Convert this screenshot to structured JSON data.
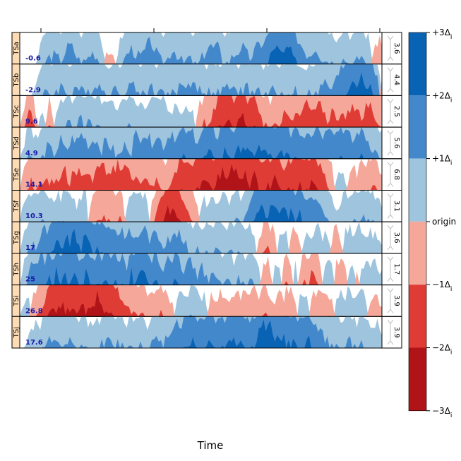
{
  "chart_data": {
    "type": "horizonplot",
    "title": "",
    "xlabel": "Time",
    "ylabel": "",
    "x_ticks": 4,
    "n_points": 160,
    "panels": [
      {
        "name": "TSa",
        "origin": "-0.6",
        "scale": "3.6"
      },
      {
        "name": "TSb",
        "origin": "-2.9",
        "scale": "4.4"
      },
      {
        "name": "TSc",
        "origin": "9.6",
        "scale": "2.5"
      },
      {
        "name": "TSd",
        "origin": "4.9",
        "scale": "5.6"
      },
      {
        "name": "TSe",
        "origin": "14.1",
        "scale": "6.8"
      },
      {
        "name": "TSf",
        "origin": "10.3",
        "scale": "3.1"
      },
      {
        "name": "TSg",
        "origin": "17",
        "scale": "3.6"
      },
      {
        "name": "TSh",
        "origin": "25",
        "scale": "1.7"
      },
      {
        "name": "TSi",
        "origin": "26.8",
        "scale": "3.9"
      },
      {
        "name": "TSj",
        "origin": "17.6",
        "scale": "3.9"
      }
    ],
    "level_profiles": [
      [
        0,
        0,
        0,
        0,
        0,
        0.5,
        1,
        1.2,
        1.3,
        1.2,
        1.1,
        1.4,
        1.6,
        1.5,
        1.2,
        1.0,
        1.1,
        1.3,
        1.4,
        1.2,
        0.8,
        -0.3,
        -0.5,
        -0.2,
        0.5,
        1.0,
        1.3,
        1.5,
        1.4,
        1.2,
        1.3,
        1.6,
        1.7,
        1.4,
        1.1,
        1.0,
        1.2,
        1.5,
        1.4,
        1.1,
        1.0,
        1.2,
        1.0,
        0.9,
        1.1,
        1.4,
        1.6,
        1.5,
        1.6,
        1.2,
        1.0,
        1.1,
        1.3,
        1.4,
        1.6,
        1.3,
        1.2,
        1.4,
        1.6,
        1.7,
        1.8,
        2.3,
        2.6,
        2.4,
        2.2,
        2.6,
        2.3,
        2.0,
        1.7,
        1.5,
        1.3,
        1.4,
        1.6,
        1.3,
        1.1,
        1.2,
        1.0,
        0.9,
        1.1,
        1.2,
        1.0,
        0.9,
        1.1,
        1.3,
        1.0,
        0.8,
        -0.5,
        -0.8,
        -0.6
      ],
      [
        0,
        0,
        0,
        0,
        0.5,
        0.8,
        1.0,
        1.1,
        1.0,
        1.2,
        1.3,
        1.1,
        1.0,
        1.2,
        1.3,
        1.1,
        1.0,
        1.2,
        1.3,
        1.4,
        1.2,
        1.0,
        1.1,
        1.2,
        1.0,
        1.1,
        1.3,
        1.4,
        1.2,
        1.1,
        1.0,
        1.2,
        1.3,
        1.1,
        1.0,
        1.2,
        1.1,
        1.0,
        1.1,
        1.3,
        1.4,
        1.3,
        1.5,
        1.3,
        1.1,
        1.0,
        1.1,
        1.2,
        1.0,
        1.1,
        1.2,
        1.3,
        1.1,
        1.0,
        1.2,
        1.3,
        1.1,
        1.0,
        1.2,
        1.0,
        0.9,
        1.1,
        1.2,
        1.1,
        1.0,
        0.9,
        1.1,
        1.2,
        1.0,
        0.9,
        1.0,
        1.1,
        1.0,
        1.2,
        1.4,
        1.3,
        1.2,
        1.5,
        1.8,
        2.0,
        2.3,
        2.5,
        2.4,
        2.7,
        2.4,
        2.2,
        2.0,
        1.4,
        -0.5
      ],
      [
        0,
        -0.6,
        -1.6,
        -1.2,
        -0.5,
        0.5,
        0.3,
        -1.0,
        -0.4,
        0.6,
        1.0,
        0.8,
        1.2,
        0.6,
        1.0,
        1.3,
        0.9,
        1.2,
        0.7,
        1.0,
        0.6,
        0.8,
        1.1,
        0.5,
        0.7,
        1.0,
        0.8,
        1.1,
        0.6,
        0.9,
        0.5,
        0.8,
        1.0,
        1.2,
        0.7,
        0.9,
        0.5,
        0.3,
        0.8,
        0.5,
        0.7,
        0.4,
        0.6,
        -0.4,
        -0.8,
        -1.2,
        -1.0,
        -1.4,
        -1.8,
        -2.1,
        -1.9,
        -2.2,
        -1.8,
        -2.0,
        -2.4,
        -2.0,
        -1.7,
        -2.0,
        -1.6,
        -1.2,
        -1.0,
        -0.8,
        -1.2,
        -0.9,
        -1.4,
        -1.6,
        -1.3,
        -1.5,
        -1.2,
        -1.6,
        -1.8,
        -1.3,
        -1.6,
        -1.9,
        -1.4,
        -1.2,
        -1.6,
        -1.3,
        -1.5,
        -1.2,
        -1.4,
        -1.8,
        -1.5,
        -1.3,
        -1.6,
        -1.9,
        -1.5,
        -1.2,
        -0.8
      ],
      [
        0,
        0.5,
        1.2,
        1.0,
        0.6,
        0.8,
        1.2,
        1.4,
        1.1,
        1.3,
        1.6,
        1.2,
        1.4,
        1.7,
        1.5,
        1.8,
        1.6,
        1.4,
        1.7,
        1.5,
        1.3,
        1.6,
        1.4,
        1.2,
        1.0,
        1.3,
        1.5,
        1.2,
        1.8,
        1.6,
        1.9,
        1.7,
        1.5,
        1.8,
        1.6,
        1.4,
        1.7,
        1.9,
        1.6,
        1.8,
        2.0,
        1.7,
        1.9,
        1.6,
        1.8,
        2.0,
        2.2,
        1.9,
        1.7,
        2.0,
        2.3,
        2.1,
        1.9,
        2.2,
        2.5,
        2.3,
        2.0,
        2.2,
        2.4,
        2.1,
        2.3,
        2.0,
        1.8,
        2.1,
        2.3,
        2.0,
        1.8,
        2.1,
        1.9,
        1.7,
        2.0,
        1.8,
        2.1,
        1.9,
        1.7,
        2.2,
        2.0,
        1.8,
        2.1,
        1.9,
        1.7,
        1.5,
        1.8,
        2.0,
        1.7,
        1.5,
        1.3,
        1.1,
        0.8
      ],
      [
        0,
        -0.6,
        -1.0,
        -1.3,
        -1.0,
        -1.2,
        -1.4,
        -1.1,
        -1.3,
        -1.2,
        -1.4,
        -1.6,
        -1.3,
        -1.5,
        -1.7,
        -1.4,
        -1.6,
        -1.3,
        -1.5,
        -1.7,
        -1.8,
        -1.6,
        -1.4,
        -1.7,
        -1.9,
        -1.6,
        -1.8,
        -1.5,
        -1.3,
        -1.2,
        -1.1,
        -1.3,
        -1.2,
        -1.4,
        -1.1,
        -0.9,
        -1.0,
        -1.2,
        -1.6,
        -1.9,
        -2.0,
        -2.1,
        -1.9,
        -2.2,
        -2.0,
        -2.3,
        -2.1,
        -2.0,
        -2.4,
        -2.6,
        -2.3,
        -2.5,
        -2.8,
        -2.6,
        -2.3,
        -2.5,
        -2.2,
        -2.4,
        -2.1,
        -1.9,
        -2.2,
        -2.0,
        -2.3,
        -1.9,
        -1.7,
        -2.0,
        -1.8,
        -1.9,
        -2.1,
        -1.8,
        -2.0,
        -2.2,
        -1.9,
        -1.7,
        -1.4,
        -1.0,
        -0.6,
        0.4,
        0.6,
        0.3,
        -0.4,
        -0.7,
        -0.5,
        -0.8,
        -0.6,
        -0.9,
        -1.2,
        -0.9,
        -0.5
      ],
      [
        0,
        0.6,
        0.9,
        0.7,
        1.0,
        0.8,
        1.1,
        0.9,
        0.7,
        1.0,
        0.8,
        1.1,
        0.9,
        0.7,
        0.5,
        0.8,
        1.0,
        -0.6,
        -1.0,
        -1.3,
        -1.1,
        -1.2,
        -1.0,
        -0.8,
        -1.1,
        -0.9,
        0.6,
        0.8,
        1.0,
        0.7,
        0.9,
        0.6,
        -0.5,
        -1.2,
        -1.6,
        -2.0,
        -2.5,
        -2.2,
        -2.4,
        -2.0,
        -1.6,
        -1.1,
        -0.8,
        -0.6,
        0.5,
        0.7,
        0.5,
        0.8,
        0.6,
        0.9,
        0.7,
        0.5,
        0.8,
        1.0,
        0.7,
        1.1,
        1.5,
        1.9,
        2.2,
        2.5,
        2.2,
        2.4,
        2.6,
        2.3,
        2.5,
        2.1,
        2.3,
        2.0,
        2.2,
        1.9,
        1.7,
        2.0,
        1.6,
        1.4,
        1.2,
        0.9,
        0.6,
        0.4,
        0.7,
        0.9,
        0.7,
        1.0,
        1.1,
        1.2,
        1.0,
        1.1,
        0.9,
        0.8,
        0.5
      ],
      [
        0,
        0.6,
        1.0,
        1.4,
        1.2,
        1.5,
        1.8,
        1.6,
        2.0,
        2.3,
        2.1,
        2.5,
        2.3,
        2.6,
        2.4,
        2.2,
        2.5,
        2.3,
        2.0,
        2.2,
        1.8,
        2.0,
        1.7,
        1.9,
        1.6,
        1.8,
        1.5,
        1.7,
        1.4,
        1.6,
        1.9,
        1.6,
        1.4,
        1.7,
        1.5,
        1.3,
        1.6,
        1.4,
        1.7,
        1.5,
        1.3,
        1.1,
        0.9,
        1.2,
        1.0,
        0.8,
        1.1,
        0.9,
        1.2,
        1.0,
        0.8,
        1.1,
        0.9,
        1.0,
        0.8,
        0.6,
        0.9,
        0.5,
        -0.5,
        -0.9,
        -1.2,
        -0.8,
        -0.6,
        0.5,
        0.7,
        0.5,
        -0.6,
        -0.9,
        -0.5,
        0.5,
        0.8,
        0.6,
        0.9,
        0.7,
        0.5,
        0.8,
        -0.6,
        -0.8,
        -0.5,
        0.6,
        0.8,
        0.6,
        0.9,
        0.7,
        0.5,
        0.8,
        0.6,
        0.5,
        0.4
      ],
      [
        0,
        0.6,
        1.2,
        1.8,
        1.4,
        2.2,
        1.6,
        2.4,
        1.8,
        2.6,
        2.0,
        2.4,
        1.8,
        2.6,
        2.2,
        1.6,
        2.4,
        2.0,
        1.6,
        2.2,
        1.8,
        2.3,
        1.7,
        2.1,
        1.5,
        2.0,
        1.6,
        2.4,
        1.8,
        2.2,
        2.6,
        2.0,
        1.6,
        2.2,
        1.8,
        1.4,
        2.0,
        1.6,
        2.3,
        1.8,
        1.4,
        2.0,
        1.6,
        1.2,
        1.8,
        1.4,
        1.0,
        1.6,
        1.2,
        0.9,
        1.4,
        1.1,
        0.8,
        1.3,
        1.0,
        0.7,
        1.2,
        0.9,
        0.6,
        -0.5,
        -0.8,
        -0.5,
        0.6,
        0.9,
        -0.6,
        -1.0,
        -0.6,
        0.7,
        -0.5,
        -1.1,
        -0.7,
        -1.4,
        -1.0,
        -0.6,
        0.6,
        0.9,
        0.6,
        -0.7,
        -1.0,
        -0.6,
        0.6,
        0.8,
        -0.6,
        0.5,
        0.8,
        0.6,
        0.9,
        0.6,
        0.4
      ],
      [
        0,
        0.5,
        0.8,
        -0.6,
        -0.9,
        -1.2,
        -1.6,
        -2.0,
        -2.3,
        -2.1,
        -2.4,
        -2.2,
        -2.0,
        -2.3,
        -2.1,
        -2.5,
        -2.2,
        -2.0,
        -2.4,
        -2.7,
        -2.4,
        -2.1,
        -2.3,
        -2.0,
        -1.8,
        -1.6,
        -1.4,
        -1.2,
        -1.0,
        -0.9,
        -1.1,
        -0.8,
        -0.6,
        -0.9,
        -1.1,
        -0.8,
        -0.6,
        -0.5,
        0.5,
        0.7,
        0.9,
        0.7,
        1.0,
        0.8,
        0.6,
        0.8,
        -0.5,
        -0.7,
        -0.5,
        -0.8,
        -0.6,
        -0.5,
        -0.7,
        -0.9,
        -0.6,
        -0.8,
        -0.7,
        -0.9,
        -0.6,
        -0.8,
        -1.0,
        -0.7,
        -0.5,
        -0.8,
        -0.6,
        -0.9,
        -0.7,
        -0.5,
        0.6,
        0.8,
        0.6,
        -0.6,
        -0.8,
        -0.6,
        -0.9,
        -0.7,
        -0.5,
        0.5,
        0.8,
        0.6,
        0.9,
        0.7,
        0.5,
        0.8,
        0.6,
        -0.5,
        -0.7,
        -0.5,
        -0.3
      ],
      [
        0,
        0,
        0.3,
        0.6,
        0.9,
        0.7,
        1.0,
        1.2,
        1.0,
        1.3,
        1.1,
        0.9,
        1.2,
        1.0,
        0.8,
        1.1,
        0.9,
        0.7,
        1.0,
        0.8,
        1.1,
        1.3,
        1.1,
        0.9,
        1.2,
        1.0,
        0.8,
        1.1,
        0.9,
        1.2,
        1.0,
        0.8,
        1.1,
        1.3,
        1.0,
        1.2,
        1.4,
        1.7,
        1.9,
        1.7,
        1.9,
        2.1,
        2.3,
        2.0,
        1.8,
        2.1,
        2.3,
        2.0,
        1.8,
        2.1,
        1.9,
        2.2,
        2.4,
        2.1,
        2.3,
        2.0,
        1.8,
        2.1,
        2.5,
        2.8,
        2.5,
        2.7,
        2.4,
        2.2,
        2.4,
        2.1,
        2.0,
        2.2,
        1.9,
        2.1,
        2.3,
        2.0,
        1.7,
        1.5,
        1.3,
        1.1,
        1.3,
        1.0,
        0.8,
        1.1,
        1.3,
        1.0,
        0.8,
        1.1,
        0.9,
        0.7,
        0.9,
        0.7,
        0.5
      ]
    ],
    "legend": [
      {
        "label": "+3Δ",
        "sub": "i",
        "color": "#0863b5"
      },
      {
        "label": "+2Δ",
        "sub": "i",
        "color": "#4488cc"
      },
      {
        "label": "+1Δ",
        "sub": "i",
        "color": "#9ec4de"
      },
      {
        "label": "origin",
        "sub": "",
        "color": "#f5a89a"
      },
      {
        "label": "−1Δ",
        "sub": "i",
        "color": "#e03c36"
      },
      {
        "label": "−2Δ",
        "sub": "i",
        "color": "#b01419"
      },
      {
        "label": "−3Δ",
        "sub": "i",
        "color": ""
      }
    ],
    "colors": {
      "pos1": "#9ec4de",
      "pos2": "#4488cc",
      "pos3": "#0863b5",
      "neg1": "#f5a89a",
      "neg2": "#e03c36",
      "neg3": "#b01419",
      "strip_bg": "#fddcb5"
    }
  }
}
